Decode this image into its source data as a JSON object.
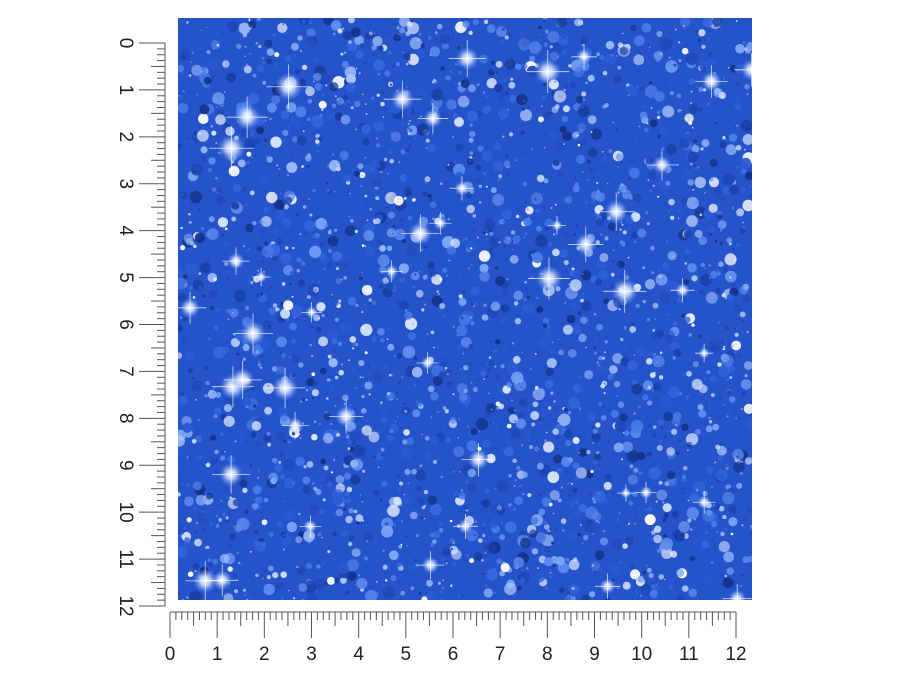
{
  "rulers": {
    "vertical": {
      "labels": [
        "0",
        "1",
        "2",
        "3",
        "4",
        "5",
        "6",
        "7",
        "8",
        "9",
        "10",
        "11",
        "12"
      ]
    },
    "horizontal": {
      "labels": [
        "0",
        "1",
        "2",
        "3",
        "4",
        "5",
        "6",
        "7",
        "8",
        "9",
        "10",
        "11",
        "12"
      ]
    }
  }
}
